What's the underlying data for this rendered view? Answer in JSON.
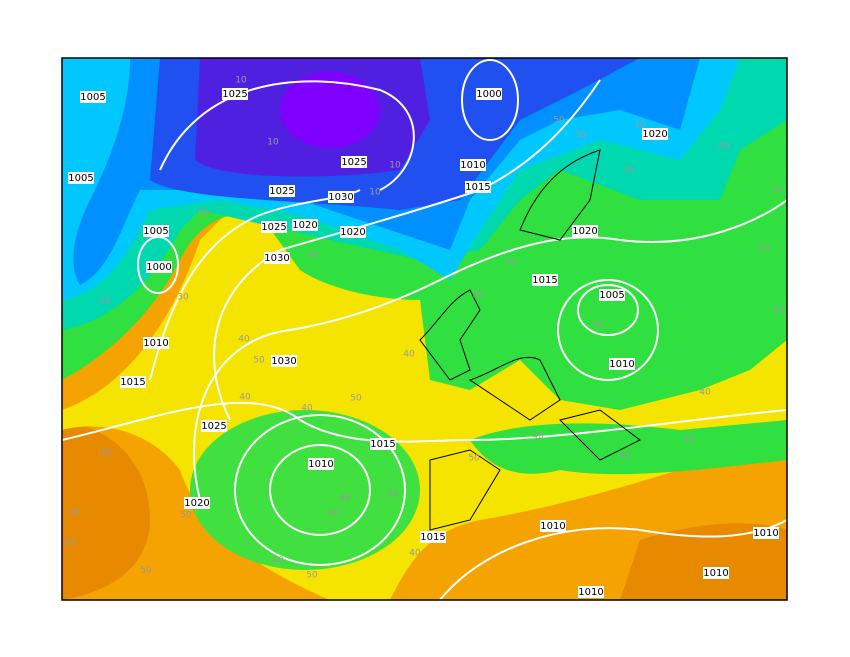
{
  "map": {
    "isobar_labels": [
      1005,
      1025,
      1005,
      1025,
      1030,
      1025,
      1020,
      1025,
      1030,
      1020,
      1005,
      1000,
      1010,
      1015,
      1030,
      1025,
      1020,
      1010,
      1015,
      1000,
      1010,
      1015,
      1020,
      1020,
      1015,
      1005,
      1010,
      1010,
      1015,
      1010,
      1010,
      1010
    ],
    "thickness_labels": [
      10,
      10,
      10,
      10,
      20,
      20,
      30,
      40,
      40,
      50,
      40,
      40,
      50,
      40,
      50,
      40,
      50,
      50,
      40,
      50,
      50,
      40,
      40,
      50,
      40,
      50,
      40,
      40,
      40,
      40,
      50,
      50,
      50,
      40,
      30,
      20,
      30,
      50,
      30,
      30,
      40
    ]
  }
}
